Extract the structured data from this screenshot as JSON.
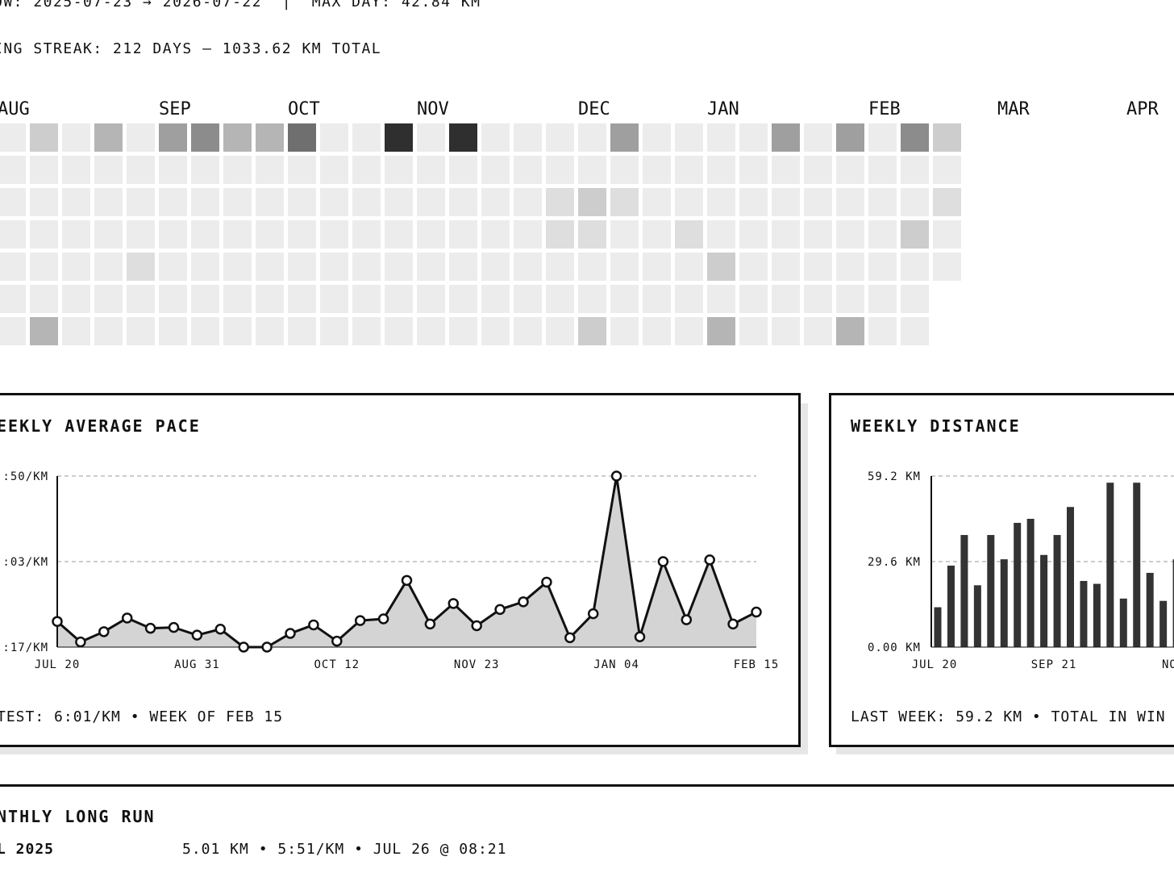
{
  "header": {
    "window_line": "OW: 2025-07-23 → 2026-07-22  |  MAX DAY: 42.84 KM",
    "streak_line": "ING STREAK: 212 DAYS — 1033.62 KM TOTAL"
  },
  "heatmap": {
    "months": [
      {
        "label": "AUG",
        "col": 0
      },
      {
        "label": "SEP",
        "col": 5
      },
      {
        "label": "OCT",
        "col": 9
      },
      {
        "label": "NOV",
        "col": 13
      },
      {
        "label": "DEC",
        "col": 18
      },
      {
        "label": "JAN",
        "col": 22
      },
      {
        "label": "FEB",
        "col": 27
      },
      {
        "label": "MAR",
        "col": 31
      },
      {
        "label": "APR",
        "col": 35
      }
    ],
    "weeks": [
      [
        1,
        1,
        1,
        1,
        1,
        1,
        1
      ],
      [
        3,
        1,
        1,
        1,
        1,
        1,
        4
      ],
      [
        1,
        1,
        1,
        1,
        1,
        1,
        1
      ],
      [
        4,
        1,
        1,
        1,
        1,
        1,
        1
      ],
      [
        1,
        1,
        1,
        1,
        2,
        1,
        1
      ],
      [
        5,
        1,
        1,
        1,
        1,
        1,
        1
      ],
      [
        6,
        1,
        1,
        1,
        1,
        1,
        1
      ],
      [
        4,
        1,
        1,
        1,
        1,
        1,
        1
      ],
      [
        4,
        1,
        1,
        1,
        1,
        1,
        1
      ],
      [
        7,
        1,
        1,
        1,
        1,
        1,
        1
      ],
      [
        1,
        1,
        1,
        1,
        1,
        1,
        1
      ],
      [
        1,
        1,
        1,
        1,
        1,
        1,
        1
      ],
      [
        9,
        1,
        1,
        1,
        1,
        1,
        1
      ],
      [
        1,
        1,
        1,
        1,
        1,
        1,
        1
      ],
      [
        9,
        1,
        1,
        1,
        1,
        1,
        1
      ],
      [
        1,
        1,
        1,
        1,
        1,
        1,
        1
      ],
      [
        1,
        1,
        1,
        1,
        1,
        1,
        1
      ],
      [
        1,
        1,
        2,
        2,
        1,
        1,
        1
      ],
      [
        1,
        1,
        3,
        2,
        1,
        1,
        3
      ],
      [
        5,
        1,
        2,
        1,
        1,
        1,
        1
      ],
      [
        1,
        1,
        1,
        1,
        1,
        1,
        1
      ],
      [
        1,
        1,
        1,
        2,
        1,
        1,
        1
      ],
      [
        1,
        1,
        1,
        1,
        3,
        1,
        4
      ],
      [
        1,
        1,
        1,
        1,
        1,
        1,
        1
      ],
      [
        5,
        1,
        1,
        1,
        1,
        1,
        1
      ],
      [
        1,
        1,
        1,
        1,
        1,
        1,
        1
      ],
      [
        5,
        1,
        1,
        1,
        1,
        1,
        4
      ],
      [
        1,
        1,
        1,
        1,
        1,
        1,
        1
      ],
      [
        6,
        1,
        1,
        3,
        1,
        1,
        1
      ],
      [
        3,
        1,
        2,
        1,
        1
      ]
    ]
  },
  "pace_chart": {
    "title": "EEKLY AVERAGE PACE",
    "footer": "TEST: 6:01/KM • WEEK OF FEB 15"
  },
  "distance_chart": {
    "title": "WEEKLY DISTANCE",
    "footer": "LAST WEEK: 59.2 KM • TOTAL IN WIN"
  },
  "chart_data": [
    {
      "type": "area",
      "title": "EEKLY AVERAGE PACE",
      "y_tick_labels": [
        ":50/KM",
        ":03/KM",
        ":17/KM"
      ],
      "x_tick_labels": [
        "JUL 20",
        "AUG 31",
        "OCT 12",
        "NOV 23",
        "JAN 04",
        "FEB 15"
      ],
      "x_tick_index": [
        0,
        6,
        12,
        18,
        24,
        30
      ],
      "ylim": [
        0,
        100
      ],
      "grid": true,
      "values": [
        15,
        3,
        9,
        17,
        11,
        11.5,
        7,
        10.5,
        0,
        0,
        8,
        13,
        3.5,
        15.5,
        16.5,
        39,
        13.5,
        25.5,
        12.5,
        22,
        26.5,
        38,
        5.5,
        19.5,
        100,
        6,
        50,
        16,
        51,
        13.5,
        20.5
      ]
    },
    {
      "type": "bar",
      "title": "WEEKLY DISTANCE",
      "ylabel": "KM",
      "y_tick_labels": [
        "59.2 KM",
        "29.6 KM",
        "0.00 KM"
      ],
      "x_tick_labels": [
        "JUL 20",
        "SEP 21",
        "NOV"
      ],
      "x_tick_index": [
        0,
        9,
        18
      ],
      "ylim": [
        0,
        59.2
      ],
      "grid": true,
      "values": [
        13.8,
        28.2,
        38.8,
        21.4,
        38.8,
        30.4,
        43.0,
        44.4,
        31.9,
        38.8,
        48.5,
        22.9,
        21.9,
        56.9,
        16.8,
        56.9,
        25.7,
        16.0,
        30.4
      ]
    }
  ],
  "long_run": {
    "title": "NTHLY LONG RUN",
    "month": "L 2025",
    "detail": "5.01 KM • 5:51/KM • JUL 26 @ 08:21"
  },
  "colors": {
    "ink": "#111111",
    "area_fill": "#d4d4d4",
    "bar": "#333333",
    "shadow": "#e6e6e6",
    "heat_levels": [
      "#ffffff",
      "#ececec",
      "#dedede",
      "#cdcdcd",
      "#b5b5b5",
      "#9f9f9f",
      "#8c8c8c",
      "#6f6f6f",
      "#555555",
      "#2f2f2f"
    ]
  }
}
